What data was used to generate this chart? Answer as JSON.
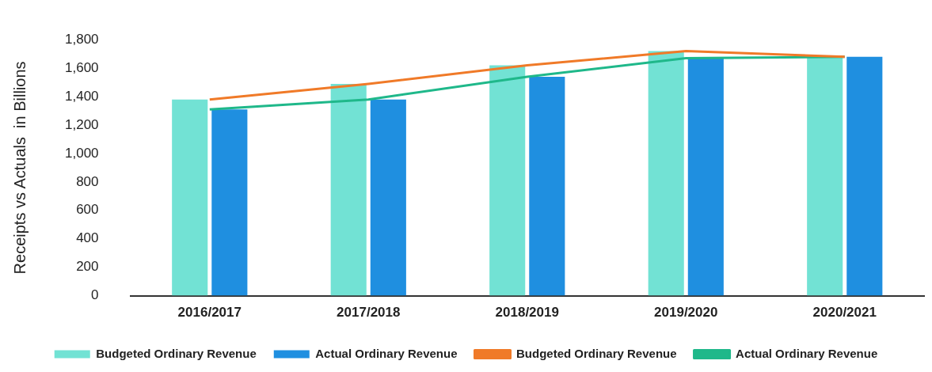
{
  "chart_data": {
    "type": "bar",
    "ylabel": "Receipts vs Actuals  in Billions",
    "categories": [
      "2016/2017",
      "2017/2018",
      "2018/2019",
      "2019/2020",
      "2020/2021"
    ],
    "series": [
      {
        "name": "Budgeted Ordinary Revenue",
        "color": "#72e2d4",
        "values": [
          1380,
          1490,
          1620,
          1720,
          1680
        ]
      },
      {
        "name": "Actual Ordinary Revenue",
        "color": "#1f8fe0",
        "values": [
          1310,
          1380,
          1540,
          1670,
          1680
        ]
      },
      {
        "name": "Budgeted Ordinary Revenue",
        "type": "line",
        "color": "#f07a28",
        "values": [
          1380,
          1490,
          1620,
          1720,
          1680
        ]
      },
      {
        "name": "Actual Ordinary Revenue",
        "type": "line",
        "color": "#1fb88a",
        "values": [
          1310,
          1380,
          1540,
          1670,
          1680
        ]
      }
    ],
    "ylim": [
      0,
      1800
    ],
    "yticks": [
      0,
      200,
      400,
      600,
      800,
      {
        "value": 1000,
        "label": "1,000"
      },
      {
        "value": 1200,
        "label": "1,200"
      },
      {
        "value": 1400,
        "label": "1,400"
      },
      {
        "value": 1600,
        "label": "1,600"
      },
      {
        "value": 1800,
        "label": "1,800"
      }
    ],
    "grid": false,
    "legend": "bottom",
    "marker": "none"
  }
}
